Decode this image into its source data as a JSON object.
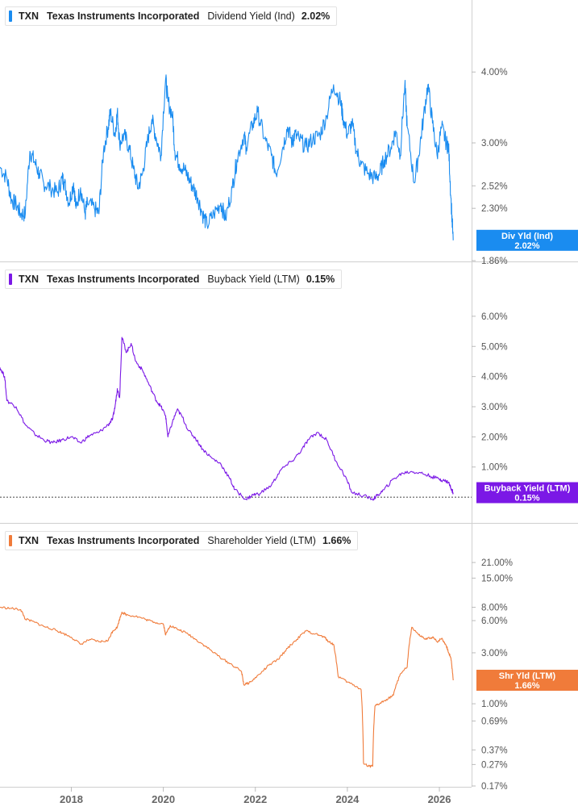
{
  "chart_data": [
    {
      "type": "line",
      "ticker": "TXN",
      "company": "Texas Instruments Incorporated",
      "metric": "Dividend Yield (Ind)",
      "value_label": "2.02%",
      "badge_label": "Div Yld (Ind)",
      "badge_value": "2.02%",
      "color": "#1a8cf0",
      "scale": "log",
      "ylim": [
        1.86,
        4.7
      ],
      "yticks": [
        {
          "value": 4.0,
          "label": "4.00%"
        },
        {
          "value": 3.0,
          "label": "3.00%"
        },
        {
          "value": 2.52,
          "label": "2.52%"
        },
        {
          "value": 2.3,
          "label": "2.30%"
        },
        {
          "value": 1.86,
          "label": "1.86%"
        }
      ],
      "series": [
        {
          "x": [
            2016.45,
            2016.6,
            2016.7,
            2016.8,
            2016.9,
            2017.0,
            2017.1,
            2017.2,
            2017.3,
            2017.4,
            2017.55,
            2017.7,
            2017.8,
            2017.85,
            2017.95,
            2018.05,
            2018.1,
            2018.2,
            2018.3,
            2018.35,
            2018.5,
            2018.6,
            2018.7,
            2018.8,
            2018.85,
            2018.95,
            2019.0,
            2019.05,
            2019.15,
            2019.25,
            2019.35,
            2019.45,
            2019.55,
            2019.65,
            2019.75,
            2019.85,
            2019.95,
            2020.05,
            2020.1,
            2020.2,
            2020.25,
            2020.35,
            2020.45,
            2020.55,
            2020.65,
            2020.75,
            2020.85,
            2020.95,
            2021.1,
            2021.25,
            2021.35,
            2021.5,
            2021.6,
            2021.75,
            2021.8,
            2021.95,
            2022.05,
            2022.2,
            2022.35,
            2022.45,
            2022.6,
            2022.7,
            2022.8,
            2022.85,
            2022.95,
            2023.1,
            2023.25,
            2023.4,
            2023.55,
            2023.7,
            2023.85,
            2023.9,
            2024.0,
            2024.1,
            2024.2,
            2024.3,
            2024.45,
            2024.6,
            2024.7,
            2024.8,
            2024.95,
            2025.05,
            2025.15,
            2025.25,
            2025.3,
            2025.45,
            2025.55,
            2025.65,
            2025.75,
            2025.85,
            2025.95,
            2026.05,
            2026.15,
            2026.2,
            2026.25,
            2026.3
          ],
          "y": [
            2.72,
            2.6,
            2.38,
            2.34,
            2.25,
            2.25,
            2.9,
            2.78,
            2.65,
            2.55,
            2.5,
            2.45,
            2.6,
            2.55,
            2.35,
            2.55,
            2.3,
            2.5,
            2.25,
            2.35,
            2.3,
            2.25,
            2.9,
            3.2,
            3.4,
            3.1,
            3.4,
            3.0,
            3.1,
            2.95,
            2.7,
            2.5,
            2.65,
            3.0,
            3.3,
            3.05,
            2.85,
            3.9,
            3.55,
            3.35,
            2.9,
            2.75,
            2.7,
            2.6,
            2.5,
            2.4,
            2.25,
            2.15,
            2.25,
            2.35,
            2.2,
            2.5,
            2.8,
            3.1,
            2.95,
            3.25,
            3.4,
            3.05,
            2.85,
            2.65,
            2.95,
            3.2,
            3.0,
            3.1,
            3.05,
            2.95,
            3.05,
            3.1,
            3.35,
            3.8,
            3.55,
            3.35,
            3.1,
            3.25,
            2.9,
            2.75,
            2.65,
            2.6,
            2.65,
            2.8,
            2.95,
            3.15,
            2.85,
            3.8,
            3.2,
            2.55,
            2.85,
            3.3,
            3.8,
            3.25,
            2.85,
            3.2,
            3.0,
            2.95,
            2.4,
            2.02
          ]
        }
      ]
    },
    {
      "type": "line",
      "ticker": "TXN",
      "company": "Texas Instruments Incorporated",
      "metric": "Buyback Yield (LTM)",
      "value_label": "0.15%",
      "badge_label": "Buyback Yield (LTM)",
      "badge_value": "0.15%",
      "color": "#7b18e6",
      "scale": "linear",
      "ylim": [
        -0.8,
        6.8
      ],
      "yticks": [
        {
          "value": 6.0,
          "label": "6.00%"
        },
        {
          "value": 5.0,
          "label": "5.00%"
        },
        {
          "value": 4.0,
          "label": "4.00%"
        },
        {
          "value": 3.0,
          "label": "3.00%"
        },
        {
          "value": 2.0,
          "label": "2.00%"
        },
        {
          "value": 1.0,
          "label": "1.00%"
        }
      ],
      "zero_line": 0,
      "series": [
        {
          "x": [
            2016.45,
            2016.55,
            2016.6,
            2016.8,
            2017.0,
            2017.2,
            2017.4,
            2017.6,
            2017.8,
            2018.0,
            2018.2,
            2018.4,
            2018.6,
            2018.8,
            2018.9,
            2018.95,
            2019.0,
            2019.05,
            2019.1,
            2019.2,
            2019.3,
            2019.4,
            2019.55,
            2019.7,
            2019.85,
            2019.95,
            2020.05,
            2020.1,
            2020.2,
            2020.3,
            2020.4,
            2020.55,
            2020.7,
            2020.85,
            2021.05,
            2021.25,
            2021.45,
            2021.55,
            2021.8,
            2021.95,
            2022.1,
            2022.35,
            2022.55,
            2022.8,
            2023.0,
            2023.15,
            2023.35,
            2023.55,
            2023.75,
            2023.95,
            2024.1,
            2024.35,
            2024.55,
            2024.65,
            2024.8,
            2025.0,
            2025.2,
            2025.4,
            2025.6,
            2025.8,
            2026.0,
            2026.1,
            2026.2,
            2026.25,
            2026.3
          ],
          "y": [
            4.3,
            4.0,
            3.2,
            3.0,
            2.4,
            2.1,
            1.9,
            1.8,
            1.9,
            2.0,
            1.8,
            2.05,
            2.15,
            2.4,
            2.6,
            3.0,
            3.6,
            3.3,
            5.3,
            4.8,
            5.1,
            4.5,
            4.2,
            3.7,
            3.2,
            3.0,
            2.7,
            2.0,
            2.5,
            2.9,
            2.7,
            2.2,
            1.95,
            1.6,
            1.3,
            1.1,
            0.6,
            0.25,
            -0.07,
            0.08,
            0.12,
            0.4,
            0.9,
            1.2,
            1.55,
            1.9,
            2.15,
            1.9,
            1.2,
            0.7,
            0.15,
            0.05,
            -0.07,
            0.05,
            0.25,
            0.6,
            0.8,
            0.85,
            0.8,
            0.7,
            0.6,
            0.55,
            0.5,
            0.3,
            0.15
          ]
        }
      ]
    },
    {
      "type": "line",
      "ticker": "TXN",
      "company": "Texas Instruments Incorporated",
      "metric": "Shareholder Yield (LTM)",
      "value_label": "1.66%",
      "badge_label": "Shr Yld (LTM)",
      "badge_value": "1.66%",
      "color": "#f07b3a",
      "scale": "log",
      "ylim": [
        0.17,
        40
      ],
      "yticks": [
        {
          "value": 21.0,
          "label": "21.00%"
        },
        {
          "value": 15.0,
          "label": "15.00%"
        },
        {
          "value": 8.0,
          "label": "8.00%"
        },
        {
          "value": 6.0,
          "label": "6.00%"
        },
        {
          "value": 3.0,
          "label": "3.00%"
        },
        {
          "value": 1.0,
          "label": "1.00%"
        },
        {
          "value": 0.69,
          "label": "0.69%"
        },
        {
          "value": 0.37,
          "label": "0.37%"
        },
        {
          "value": 0.27,
          "label": "0.27%"
        },
        {
          "value": 0.17,
          "label": "0.17%"
        }
      ],
      "series": [
        {
          "x": [
            2016.45,
            2016.7,
            2016.9,
            2017.0,
            2017.2,
            2017.4,
            2017.6,
            2017.8,
            2018.0,
            2018.2,
            2018.4,
            2018.6,
            2018.8,
            2018.9,
            2019.0,
            2019.1,
            2019.2,
            2019.4,
            2019.6,
            2019.8,
            2020.0,
            2020.05,
            2020.15,
            2020.3,
            2020.5,
            2020.7,
            2020.9,
            2021.1,
            2021.3,
            2021.5,
            2021.7,
            2021.75,
            2021.9,
            2022.1,
            2022.3,
            2022.5,
            2022.7,
            2022.9,
            2023.1,
            2023.3,
            2023.5,
            2023.6,
            2023.7,
            2023.8,
            2024.0,
            2024.2,
            2024.3,
            2024.35,
            2024.45,
            2024.55,
            2024.6,
            2024.7,
            2024.85,
            2025.0,
            2025.15,
            2025.3,
            2025.4,
            2025.55,
            2025.7,
            2025.85,
            2025.95,
            2026.05,
            2026.15,
            2026.2,
            2026.25,
            2026.3
          ],
          "y": [
            8.0,
            7.8,
            7.6,
            6.2,
            5.8,
            5.3,
            5.0,
            4.6,
            4.2,
            3.6,
            4.0,
            3.8,
            3.9,
            4.8,
            5.2,
            7.2,
            6.8,
            6.6,
            6.2,
            5.8,
            5.6,
            4.4,
            5.4,
            5.0,
            4.6,
            4.0,
            3.5,
            3.0,
            2.6,
            2.3,
            2.0,
            1.5,
            1.6,
            1.9,
            2.3,
            2.6,
            3.3,
            4.0,
            4.8,
            4.5,
            4.2,
            3.8,
            3.6,
            1.8,
            1.6,
            1.45,
            1.35,
            0.28,
            0.26,
            0.26,
            0.95,
            1.0,
            1.1,
            1.2,
            1.9,
            2.2,
            5.2,
            4.4,
            4.0,
            4.2,
            3.8,
            4.1,
            3.5,
            3.0,
            2.7,
            1.66
          ]
        }
      ]
    }
  ],
  "xaxis": {
    "xlim": [
      2016.45,
      2026.7
    ],
    "ticks": [
      {
        "value": 2018,
        "label": "2018"
      },
      {
        "value": 2020,
        "label": "2020"
      },
      {
        "value": 2022,
        "label": "2022"
      },
      {
        "value": 2024,
        "label": "2024"
      },
      {
        "value": 2026,
        "label": "2026"
      }
    ]
  }
}
